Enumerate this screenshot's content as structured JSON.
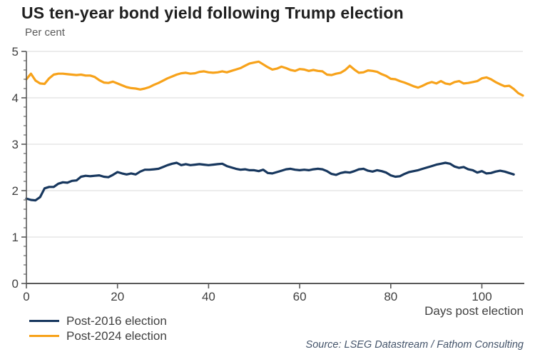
{
  "title": "US ten-year bond yield following Trump election",
  "subtitle": "Per cent",
  "source": "Source: LSEG Datastream / Fathom Consulting",
  "colors": {
    "navy": "#17375E",
    "orange": "#F7A21A",
    "grid": "#D9D9D9",
    "axis": "#595959",
    "tick_text": "#404040",
    "title_text": "#1F1F1F",
    "source_text": "#44546A"
  },
  "legend": {
    "items": [
      {
        "label": "Post-2016 election",
        "color": "#17375E"
      },
      {
        "label": "Post-2024 election",
        "color": "#F7A21A"
      }
    ]
  },
  "chart_data": {
    "type": "line",
    "title": "US ten-year bond yield following Trump election",
    "ylabel": "Per cent",
    "xlabel": "Days post election",
    "xlim": [
      0,
      109
    ],
    "ylim": [
      0,
      5
    ],
    "x_ticks": [
      0,
      20,
      40,
      60,
      80,
      100
    ],
    "y_ticks": [
      0,
      1,
      2,
      3,
      4,
      5
    ],
    "y_minor_tick_step": 0.2,
    "grid": "horizontal-major",
    "legend_position": "bottom-left",
    "series": [
      {
        "name": "Post-2016 election",
        "color": "#17375E",
        "x_start": 0,
        "values": [
          1.83,
          1.8,
          1.79,
          1.86,
          2.05,
          2.08,
          2.08,
          2.15,
          2.18,
          2.17,
          2.21,
          2.22,
          2.3,
          2.32,
          2.31,
          2.32,
          2.33,
          2.3,
          2.29,
          2.34,
          2.4,
          2.37,
          2.35,
          2.37,
          2.35,
          2.41,
          2.45,
          2.45,
          2.46,
          2.47,
          2.51,
          2.55,
          2.58,
          2.6,
          2.55,
          2.57,
          2.55,
          2.56,
          2.57,
          2.56,
          2.55,
          2.56,
          2.57,
          2.58,
          2.53,
          2.5,
          2.47,
          2.45,
          2.46,
          2.44,
          2.44,
          2.42,
          2.45,
          2.38,
          2.37,
          2.4,
          2.43,
          2.46,
          2.47,
          2.45,
          2.44,
          2.45,
          2.44,
          2.46,
          2.47,
          2.46,
          2.42,
          2.36,
          2.34,
          2.38,
          2.4,
          2.39,
          2.42,
          2.46,
          2.47,
          2.43,
          2.41,
          2.44,
          2.42,
          2.39,
          2.33,
          2.3,
          2.31,
          2.36,
          2.4,
          2.42,
          2.44,
          2.47,
          2.5,
          2.53,
          2.56,
          2.58,
          2.6,
          2.58,
          2.52,
          2.49,
          2.51,
          2.46,
          2.44,
          2.39,
          2.42,
          2.37,
          2.38,
          2.41,
          2.43,
          2.41,
          2.38,
          2.35
        ]
      },
      {
        "name": "Post-2024 election",
        "color": "#F7A21A",
        "x_start": 0,
        "values": [
          4.4,
          4.52,
          4.37,
          4.31,
          4.3,
          4.42,
          4.5,
          4.52,
          4.52,
          4.51,
          4.5,
          4.49,
          4.5,
          4.48,
          4.48,
          4.45,
          4.38,
          4.33,
          4.32,
          4.35,
          4.31,
          4.27,
          4.23,
          4.21,
          4.2,
          4.18,
          4.2,
          4.23,
          4.28,
          4.32,
          4.37,
          4.42,
          4.46,
          4.5,
          4.53,
          4.54,
          4.52,
          4.53,
          4.56,
          4.57,
          4.55,
          4.54,
          4.55,
          4.57,
          4.55,
          4.58,
          4.61,
          4.64,
          4.69,
          4.74,
          4.76,
          4.78,
          4.72,
          4.66,
          4.61,
          4.63,
          4.67,
          4.64,
          4.6,
          4.58,
          4.62,
          4.61,
          4.58,
          4.6,
          4.58,
          4.57,
          4.5,
          4.49,
          4.52,
          4.54,
          4.6,
          4.69,
          4.61,
          4.54,
          4.55,
          4.59,
          4.58,
          4.56,
          4.51,
          4.47,
          4.41,
          4.4,
          4.36,
          4.33,
          4.29,
          4.25,
          4.22,
          4.26,
          4.31,
          4.34,
          4.31,
          4.36,
          4.31,
          4.29,
          4.34,
          4.36,
          4.31,
          4.32,
          4.34,
          4.36,
          4.42,
          4.44,
          4.4,
          4.34,
          4.29,
          4.25,
          4.26,
          4.19,
          4.1,
          4.05
        ]
      }
    ]
  }
}
